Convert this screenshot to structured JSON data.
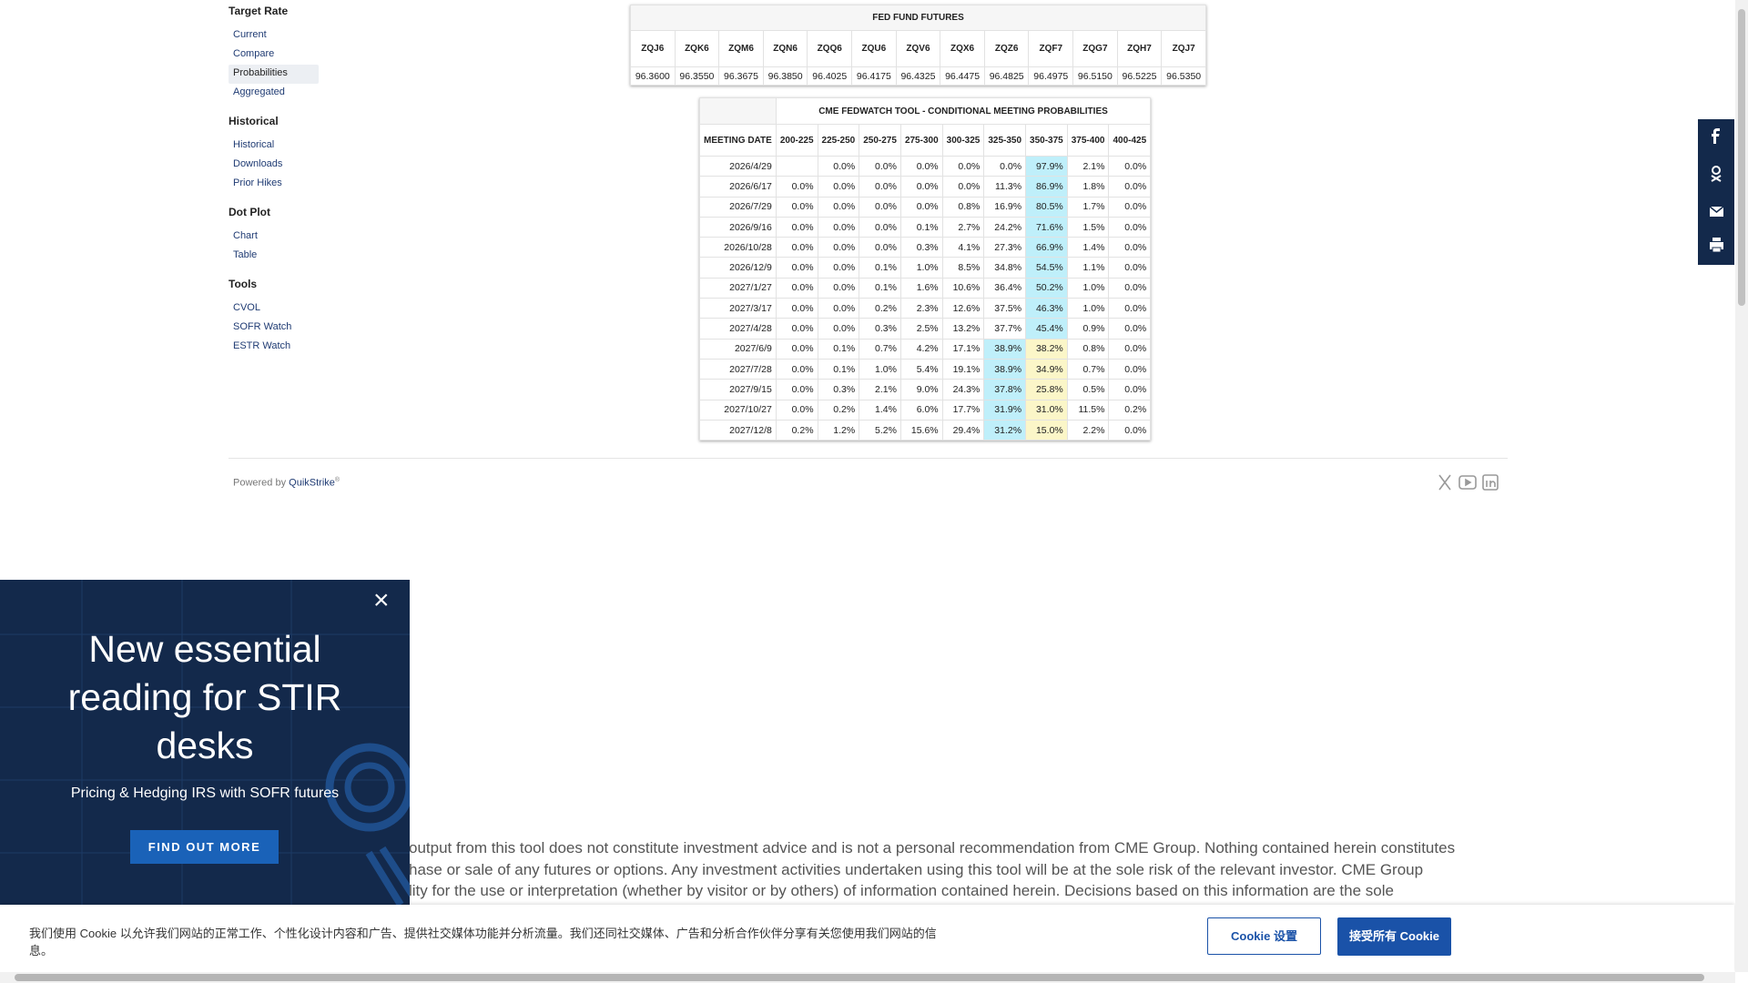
{
  "sidebar": [
    {
      "title": "Target Rate",
      "items": [
        "Current",
        "Compare",
        "Probabilities",
        "Aggregated"
      ],
      "selected": 2
    },
    {
      "title": "Historical",
      "items": [
        "Historical",
        "Downloads",
        "Prior Hikes"
      ]
    },
    {
      "title": "Dot Plot",
      "items": [
        "Chart",
        "Table"
      ]
    },
    {
      "title": "Tools",
      "items": [
        "CVOL",
        "SOFR Watch",
        "ESTR Watch"
      ]
    }
  ],
  "futures_table": {
    "title": "FED FUND FUTURES",
    "headers": [
      "ZQJ6",
      "ZQK6",
      "ZQM6",
      "ZQN6",
      "ZQQ6",
      "ZQU6",
      "ZQV6",
      "ZQX6",
      "ZQZ6",
      "ZQF7",
      "ZQG7",
      "ZQH7",
      "ZQJ7"
    ],
    "values": [
      "96.3600",
      "96.3550",
      "96.3675",
      "96.3850",
      "96.4025",
      "96.4175",
      "96.4325",
      "96.4475",
      "96.4825",
      "96.4975",
      "96.5150",
      "96.5225",
      "96.5350"
    ]
  },
  "probability_table": {
    "title": "CME FEDWATCH TOOL - CONDITIONAL MEETING PROBABILITIES",
    "headers": [
      "MEETING DATE",
      "200-225",
      "225-250",
      "250-275",
      "275-300",
      "300-325",
      "325-350",
      "350-375",
      "375-400",
      "400-425"
    ],
    "rows": [
      [
        "2026/4/29",
        null,
        "0.0%",
        "0.0%",
        "0.0%",
        "0.0%",
        "0.0%",
        "97.9%",
        "2.1%",
        "0.0%"
      ],
      [
        "2026/6/17",
        "0.0%",
        "0.0%",
        "0.0%",
        "0.0%",
        "0.0%",
        "11.3%",
        "86.9%",
        "1.8%",
        "0.0%"
      ],
      [
        "2026/7/29",
        "0.0%",
        "0.0%",
        "0.0%",
        "0.0%",
        "0.8%",
        "16.9%",
        "80.5%",
        "1.7%",
        "0.0%"
      ],
      [
        "2026/9/16",
        "0.0%",
        "0.0%",
        "0.0%",
        "0.1%",
        "2.7%",
        "24.2%",
        "71.6%",
        "1.5%",
        "0.0%"
      ],
      [
        "2026/10/28",
        "0.0%",
        "0.0%",
        "0.0%",
        "0.3%",
        "4.1%",
        "27.3%",
        "66.9%",
        "1.4%",
        "0.0%"
      ],
      [
        "2026/12/9",
        "0.0%",
        "0.0%",
        "0.1%",
        "1.0%",
        "8.5%",
        "34.8%",
        "54.5%",
        "1.1%",
        "0.0%"
      ],
      [
        "2027/1/27",
        "0.0%",
        "0.0%",
        "0.1%",
        "1.6%",
        "10.6%",
        "36.4%",
        "50.2%",
        "1.0%",
        "0.0%"
      ],
      [
        "2027/3/17",
        "0.0%",
        "0.0%",
        "0.2%",
        "2.3%",
        "12.6%",
        "37.5%",
        "46.3%",
        "1.0%",
        "0.0%"
      ],
      [
        "2027/4/28",
        "0.0%",
        "0.0%",
        "0.3%",
        "2.5%",
        "13.2%",
        "37.7%",
        "45.4%",
        "0.9%",
        "0.0%"
      ],
      [
        "2027/6/9",
        "0.0%",
        "0.1%",
        "0.7%",
        "4.2%",
        "17.1%",
        "38.9%",
        "38.2%",
        "0.8%",
        "0.0%"
      ],
      [
        "2027/7/28",
        "0.0%",
        "0.1%",
        "1.0%",
        "5.4%",
        "19.1%",
        "38.9%",
        "34.9%",
        "0.7%",
        "0.0%"
      ],
      [
        "2027/9/15",
        "0.0%",
        "0.3%",
        "2.1%",
        "9.0%",
        "24.3%",
        "37.8%",
        "25.8%",
        "0.5%",
        "0.0%"
      ],
      [
        "2027/10/27",
        "0.0%",
        "0.2%",
        "1.4%",
        "6.0%",
        "17.7%",
        "31.9%",
        "31.0%",
        "11.5%",
        "0.2%"
      ],
      [
        "2027/12/8",
        "0.2%",
        "1.2%",
        "5.2%",
        "15.6%",
        "29.4%",
        "31.2%",
        "15.0%",
        "2.2%",
        "0.0%"
      ]
    ]
  },
  "footer": {
    "powered_by": "Powered by",
    "brand": "QuikStrike",
    "mark": "®"
  },
  "popup": {
    "title": "New essential reading for STIR desks",
    "subtitle": "Pricing & Hedging IRS with SOFR futures",
    "button": "FIND OUT MORE"
  },
  "disclaimer": [
    "output from this tool does not constitute investment advice and is not a personal recommendation from CME Group.  Nothing contained herein constitutes",
    "hase or sale of any futures or options.  Any investment activities undertaken using this tool will be at the sole risk of the relevant investor.  CME Group",
    "lity for the use or interpretation (whether by visitor or by others) of information contained herein. Decisions based on this information are the sole"
  ],
  "cookie_banner": {
    "text": "我们使用 Cookie 以允许我们网站的正常工作、个性化设计内容和广告、提供社交媒体功能并分析流量。我们还同社交媒体、广告和分析合作伙伴分享有关您使用我们网站的信息。",
    "settings_button": "Cookie 设置",
    "accept_button": "接受所有 Cookie"
  }
}
